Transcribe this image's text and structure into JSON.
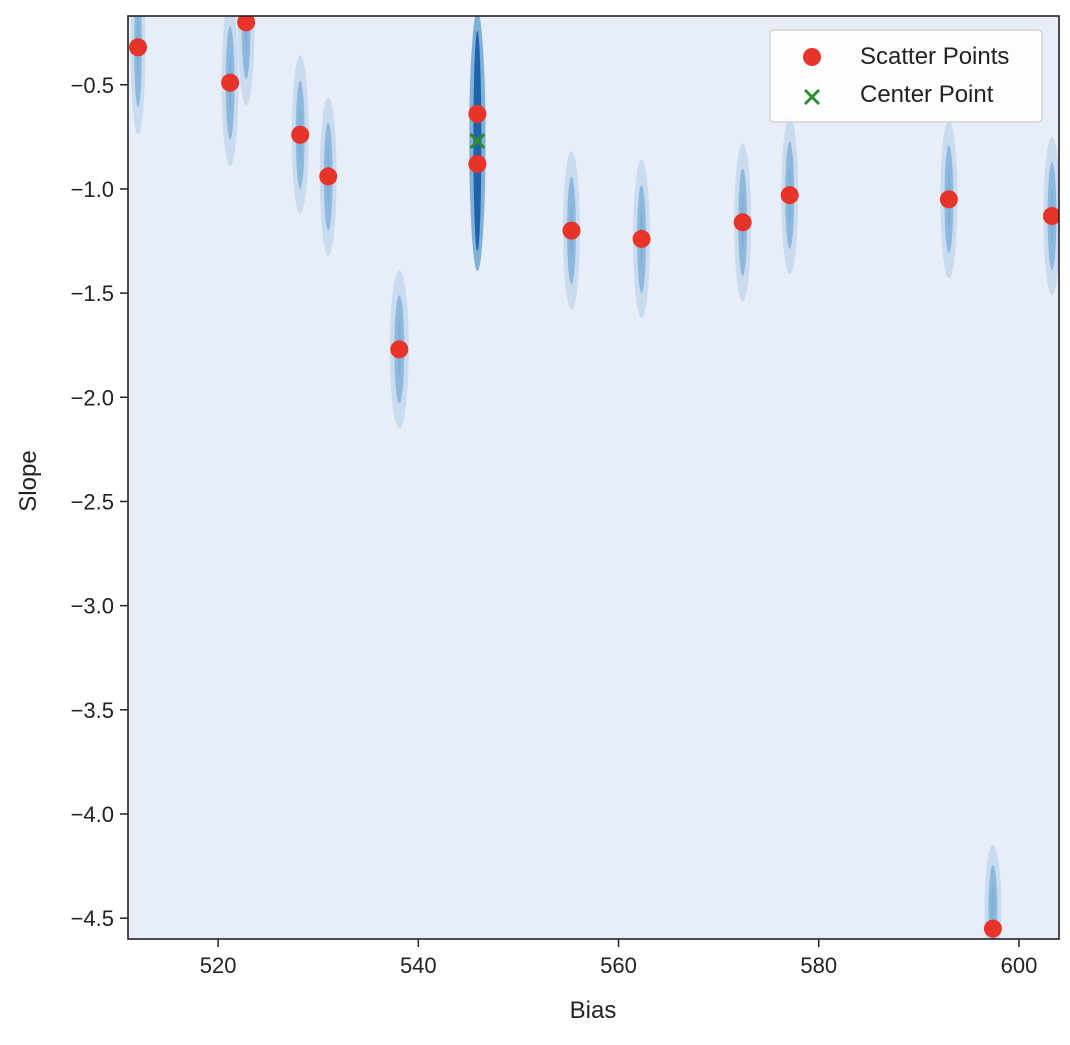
{
  "colors": {
    "plot_background": "#e8eef8",
    "density_light": "#c6d9ee",
    "density_mid": "#7fb0d7",
    "density_dark": "#1f63ad",
    "scatter": "#e8332a",
    "center": "#2e8b2e",
    "axis": "#222222"
  },
  "chart_data": {
    "type": "scatter",
    "xlabel": "Bias",
    "ylabel": "Slope",
    "xlim": [
      511,
      604
    ],
    "ylim": [
      -4.6,
      -0.17
    ],
    "xticks": [
      520,
      540,
      560,
      580,
      600
    ],
    "yticks": [
      -0.5,
      -1.0,
      -1.5,
      -2.0,
      -2.5,
      -3.0,
      -3.5,
      -4.0,
      -4.5
    ],
    "xtick_labels": [
      "520",
      "540",
      "560",
      "580",
      "600"
    ],
    "ytick_labels": [
      "−0.5",
      "−1.0",
      "−1.5",
      "−2.0",
      "−2.5",
      "−3.0",
      "−3.5",
      "−4.0",
      "−4.5"
    ],
    "legend_position": "top-right",
    "grid": false,
    "series": [
      {
        "name": "Scatter Points",
        "marker": "circle",
        "points": [
          {
            "x": 512.0,
            "y": -0.32
          },
          {
            "x": 521.2,
            "y": -0.49
          },
          {
            "x": 522.8,
            "y": -0.2
          },
          {
            "x": 528.2,
            "y": -0.74
          },
          {
            "x": 531.0,
            "y": -0.94
          },
          {
            "x": 538.1,
            "y": -1.77
          },
          {
            "x": 545.9,
            "y": -0.64
          },
          {
            "x": 545.9,
            "y": -0.88
          },
          {
            "x": 555.3,
            "y": -1.2
          },
          {
            "x": 562.3,
            "y": -1.24
          },
          {
            "x": 572.4,
            "y": -1.16
          },
          {
            "x": 577.1,
            "y": -1.03
          },
          {
            "x": 593.0,
            "y": -1.05
          },
          {
            "x": 597.4,
            "y": -4.55
          },
          {
            "x": 603.3,
            "y": -1.13
          }
        ]
      },
      {
        "name": "Center Point",
        "marker": "x",
        "points": [
          {
            "x": 545.9,
            "y": -0.77
          }
        ]
      }
    ],
    "density_blobs": [
      {
        "x": 512.0,
        "y": -0.32,
        "sx": 0.7,
        "sy": 0.42
      },
      {
        "x": 521.2,
        "y": -0.49,
        "sx": 0.8,
        "sy": 0.4
      },
      {
        "x": 522.8,
        "y": -0.2,
        "sx": 0.8,
        "sy": 0.4
      },
      {
        "x": 528.2,
        "y": -0.74,
        "sx": 0.8,
        "sy": 0.38
      },
      {
        "x": 531.0,
        "y": -0.94,
        "sx": 0.8,
        "sy": 0.38
      },
      {
        "x": 538.1,
        "y": -1.77,
        "sx": 0.9,
        "sy": 0.38
      },
      {
        "x": 545.9,
        "y": -0.64,
        "sx": 0.8,
        "sy": 0.4
      },
      {
        "x": 545.9,
        "y": -0.88,
        "sx": 0.8,
        "sy": 0.4
      },
      {
        "x": 555.3,
        "y": -1.2,
        "sx": 0.8,
        "sy": 0.38
      },
      {
        "x": 562.3,
        "y": -1.24,
        "sx": 0.8,
        "sy": 0.38
      },
      {
        "x": 572.4,
        "y": -1.16,
        "sx": 0.8,
        "sy": 0.38
      },
      {
        "x": 577.1,
        "y": -1.03,
        "sx": 0.8,
        "sy": 0.38
      },
      {
        "x": 593.0,
        "y": -1.05,
        "sx": 0.8,
        "sy": 0.38
      },
      {
        "x": 597.4,
        "y": -4.45,
        "sx": 0.8,
        "sy": 0.3
      },
      {
        "x": 603.3,
        "y": -1.13,
        "sx": 0.8,
        "sy": 0.38
      }
    ]
  }
}
